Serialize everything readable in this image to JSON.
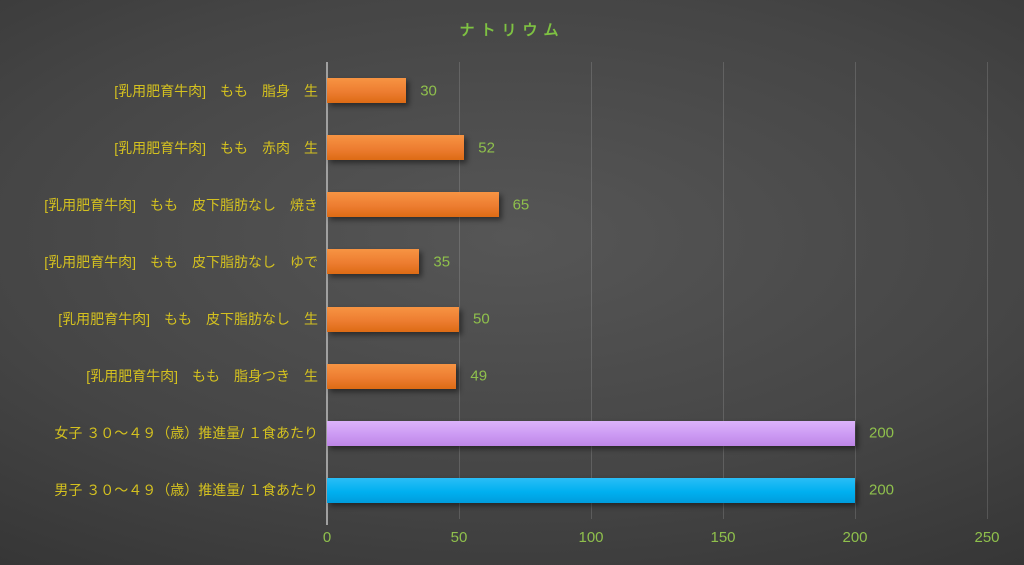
{
  "chart_data": {
    "type": "bar",
    "orientation": "horizontal",
    "title": "ナトリウム",
    "categories": [
      "[乳用肥育牛肉]　もも　脂身　生",
      "[乳用肥育牛肉]　もも　赤肉　生",
      "[乳用肥育牛肉]　もも　皮下脂肪なし　焼き",
      "[乳用肥育牛肉]　もも　皮下脂肪なし　ゆで",
      "[乳用肥育牛肉]　もも　皮下脂肪なし　生",
      "[乳用肥育牛肉]　もも　脂身つき　生",
      "女子 ３０～４９（歳）推進量/ １食あたり",
      "男子 ３０～４９（歳）推進量/ １食あたり"
    ],
    "values": [
      30,
      52,
      65,
      35,
      50,
      49,
      200,
      200
    ],
    "bar_colors": [
      "orange",
      "orange",
      "orange",
      "orange",
      "orange",
      "orange",
      "purple",
      "blue"
    ],
    "xlim": [
      0,
      250
    ],
    "x_ticks": [
      "0",
      "50",
      "100",
      "150",
      "200",
      "250"
    ],
    "grid": true,
    "legend": false
  },
  "colors": {
    "title_green": "#7ec242",
    "value_green": "#8fc04c",
    "category_yellow": "#d4c11f",
    "bar_orange": "#ed7d31",
    "bar_purple": "#cc9af3",
    "bar_blue": "#00b0f0",
    "axis_line_gray": "#a0a0a0",
    "gridline_gray": "#5f5f5f",
    "background_dark": "#2a2a2a"
  }
}
